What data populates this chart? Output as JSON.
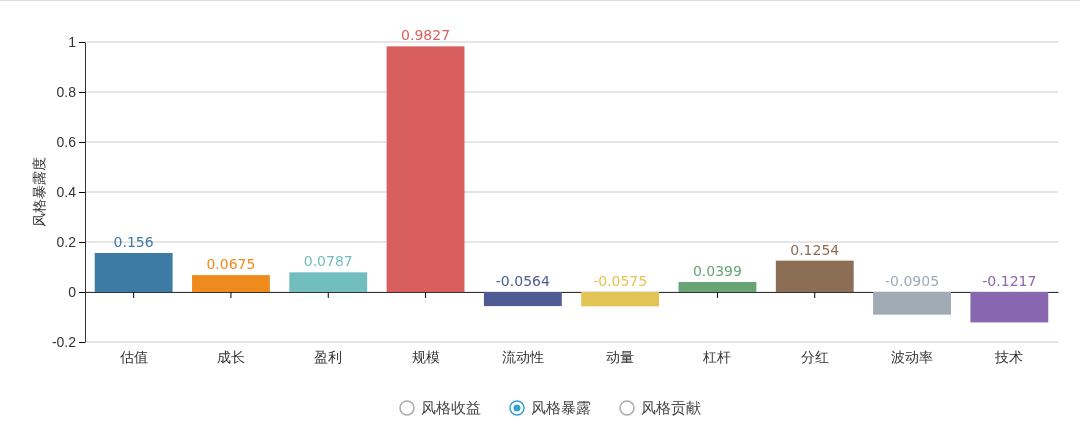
{
  "chart_data": {
    "type": "bar",
    "ylabel": "风格暴露度",
    "categories": [
      "估值",
      "成长",
      "盈利",
      "规模",
      "流动性",
      "动量",
      "杠杆",
      "分红",
      "波动率",
      "技术"
    ],
    "series": [
      {
        "name": "风格暴露",
        "colors": [
          "#3e7ba4",
          "#ef8b1c",
          "#72bdbd",
          "#d95f5f",
          "#4f5b93",
          "#e3c454",
          "#68a476",
          "#8c6e55",
          "#a0abb5",
          "#8866b0"
        ],
        "values": [
          0.156,
          0.0675,
          0.0787,
          0.9827,
          -0.0564,
          -0.0575,
          0.0399,
          0.1254,
          -0.0905,
          -0.1217
        ]
      }
    ],
    "ylim": [
      -0.2,
      1
    ],
    "yticks": [
      -0.2,
      0,
      0.2,
      0.4,
      0.6,
      0.8,
      1
    ],
    "grid": "y",
    "data_labels": true,
    "legend": "bottom",
    "annotations": [
      "风格收益",
      "风格贡献"
    ]
  }
}
